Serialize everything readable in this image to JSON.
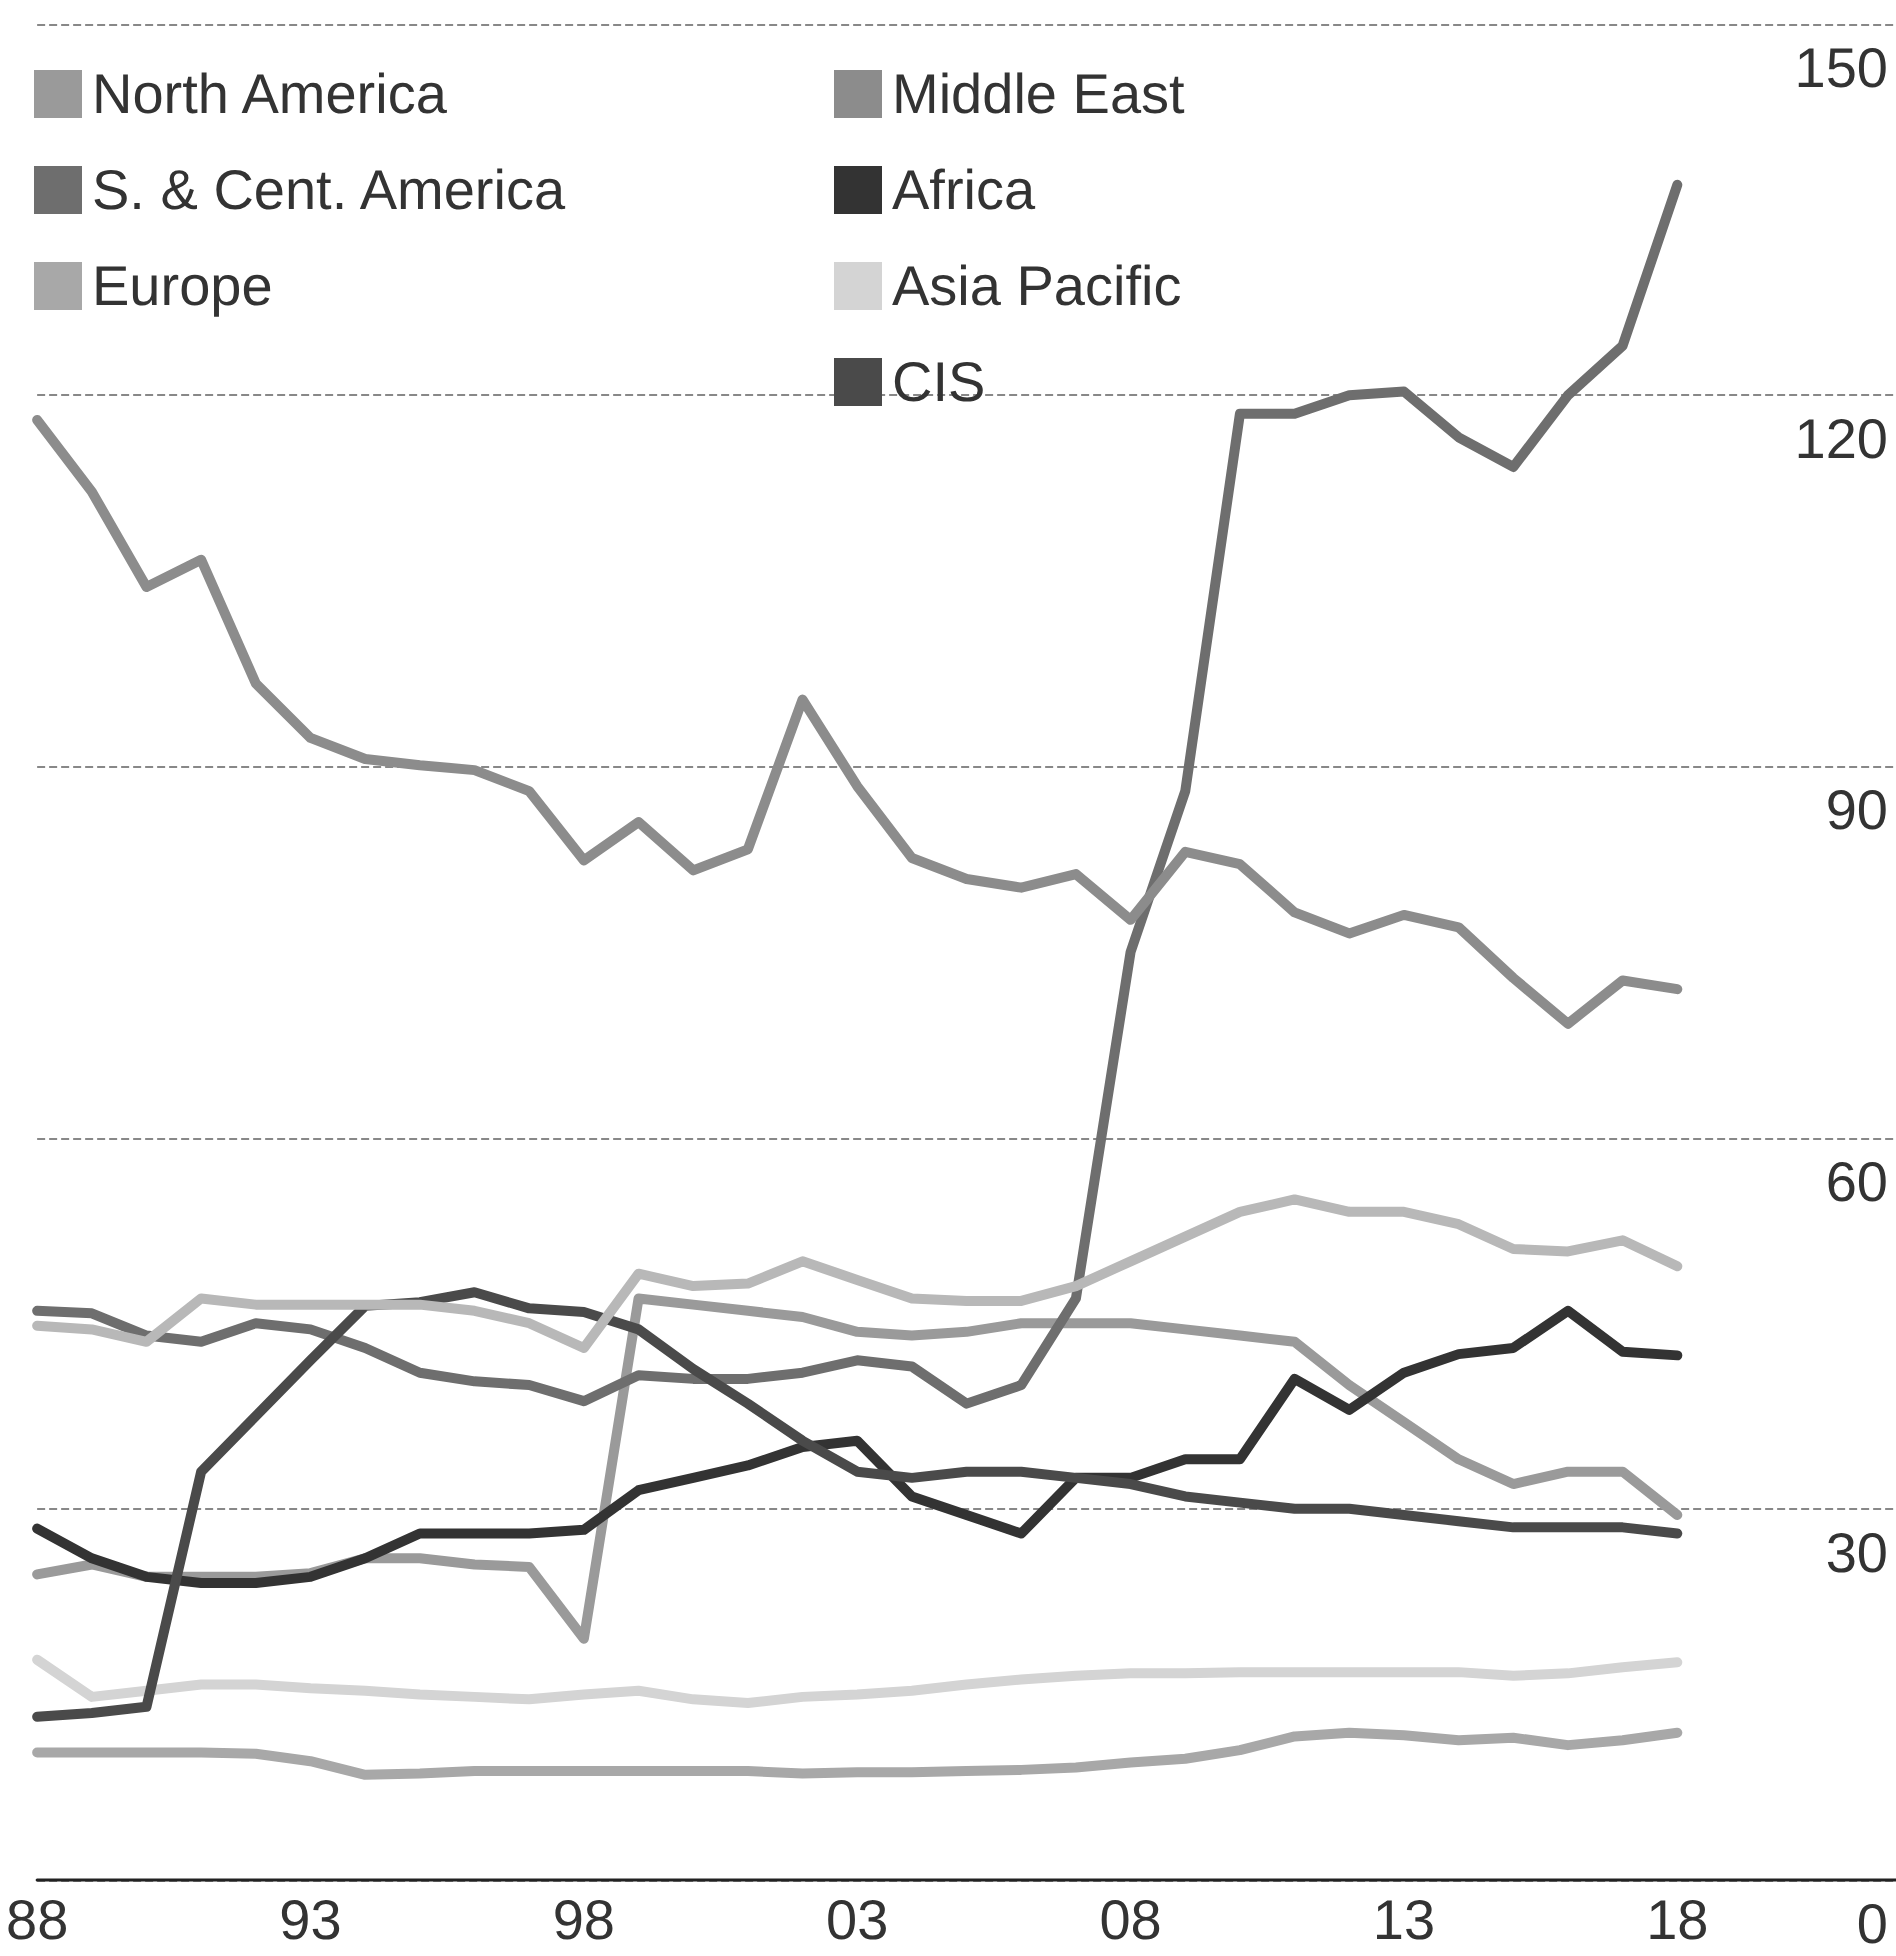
{
  "chart_data": {
    "type": "line",
    "x": [
      1988,
      1989,
      1990,
      1991,
      1992,
      1993,
      1994,
      1995,
      1996,
      1997,
      1998,
      1999,
      2000,
      2001,
      2002,
      2003,
      2004,
      2005,
      2006,
      2007,
      2008,
      2009,
      2010,
      2011,
      2012,
      2013,
      2014,
      2015,
      2016,
      2017,
      2018
    ],
    "series": [
      {
        "name": "North America",
        "color": "#9a9a9a",
        "values": [
          24.7,
          25.5,
          24.5,
          24.5,
          24.5,
          24.8,
          26,
          26,
          25.5,
          25.3,
          19.5,
          47,
          46.5,
          46,
          45.5,
          44.3,
          44,
          44.3,
          45,
          45,
          45,
          44.5,
          44,
          43.5,
          40,
          37,
          34,
          32,
          33,
          33,
          29.5
        ]
      },
      {
        "name": "S. & Cent. America",
        "color": "#6e6e6e",
        "values": [
          46,
          45.8,
          44,
          43.5,
          45,
          44.5,
          43,
          41,
          40.3,
          40,
          38.7,
          40.8,
          40.5,
          40.5,
          41,
          42,
          41.5,
          38.5,
          40,
          47,
          75,
          88,
          118.5,
          118.5,
          120,
          120.3,
          116.6,
          114.2,
          120,
          124,
          137
        ]
      },
      {
        "name": "Europe",
        "color": "#a8a8a8",
        "values": [
          10.3,
          10.3,
          10.3,
          10.3,
          10.2,
          9.6,
          8.5,
          8.6,
          8.8,
          8.8,
          8.8,
          8.8,
          8.8,
          8.8,
          8.6,
          8.7,
          8.7,
          8.8,
          8.9,
          9.1,
          9.5,
          9.8,
          10.5,
          11.6,
          11.9,
          11.7,
          11.3,
          11.5,
          10.9,
          11.3,
          11.9
        ]
      },
      {
        "name": "Middle East",
        "color": "#8c8c8c",
        "values": [
          118,
          112.2,
          104.5,
          106.7,
          96.7,
          92.3,
          90.6,
          90.1,
          89.7,
          88,
          82.4,
          85.5,
          81.6,
          83.3,
          95.4,
          88.4,
          82.6,
          80.9,
          80.2,
          81.3,
          77.6,
          83.1,
          82.1,
          78.2,
          76.5,
          78,
          77,
          72.9,
          69.2,
          72.7,
          72
        ]
      },
      {
        "name": "Africa",
        "color": "#333333",
        "values": [
          28.4,
          26,
          24.5,
          24,
          24,
          24.5,
          26,
          28,
          28,
          28,
          28.3,
          31.5,
          32.5,
          33.5,
          35,
          35.5,
          31,
          29.5,
          28,
          32.5,
          32.5,
          34,
          34,
          40.5,
          38,
          41,
          42.5,
          43,
          46,
          42.7,
          42.4
        ]
      },
      {
        "name": "Asia Pacific",
        "color": "#d4d4d4",
        "values": [
          17.8,
          14.8,
          15.3,
          15.8,
          15.8,
          15.5,
          15.3,
          15,
          14.8,
          14.6,
          15,
          15.3,
          14.6,
          14.3,
          14.8,
          15,
          15.3,
          15.8,
          16.2,
          16.5,
          16.7,
          16.7,
          16.8,
          16.8,
          16.8,
          16.8,
          16.8,
          16.5,
          16.7,
          17.2,
          17.6
        ]
      },
      {
        "name": "CIS",
        "color": "#4a4a4a",
        "values": [
          13.2,
          13.5,
          14,
          33,
          37.5,
          42,
          46.4,
          46.7,
          47.5,
          46.2,
          45.9,
          44.5,
          41.3,
          38.5,
          35.5,
          33,
          32.5,
          33,
          33,
          32.5,
          32,
          31,
          30.5,
          30,
          30,
          29.5,
          29,
          28.5,
          28.5,
          28.5,
          28
        ]
      },
      {
        "color": "#b8b8b8",
        "values": [
          44.8,
          44.5,
          43.5,
          47,
          46.5,
          46.5,
          46.5,
          46.5,
          46,
          45,
          43,
          49,
          48,
          48.2,
          50,
          48.5,
          47,
          46.8,
          46.8,
          48,
          50,
          52,
          54,
          55,
          54,
          54,
          53,
          51,
          50.8,
          51.7,
          49.6
        ]
      }
    ],
    "xlim": [
      1988,
      2022
    ],
    "xticks": [
      {
        "value": 1988,
        "label": "88"
      },
      {
        "value": 1993,
        "label": "93"
      },
      {
        "value": 1998,
        "label": "98"
      },
      {
        "value": 2003,
        "label": "03"
      },
      {
        "value": 2008,
        "label": "08"
      },
      {
        "value": 2013,
        "label": "13"
      },
      {
        "value": 2018,
        "label": "18"
      }
    ],
    "ylim": [
      0,
      150
    ],
    "yticks": [
      0,
      30,
      60,
      90,
      120,
      150
    ],
    "grid": "y",
    "legend": "top left",
    "marker": "none",
    "line_style": "solid"
  }
}
